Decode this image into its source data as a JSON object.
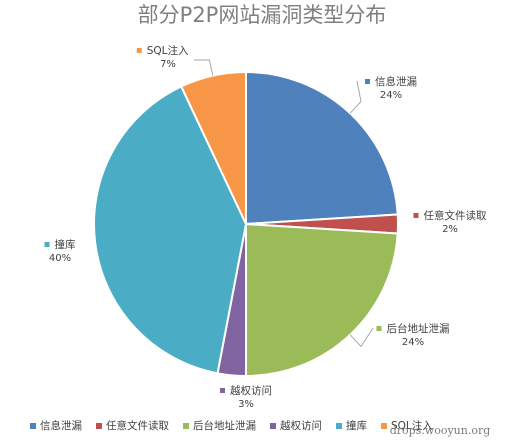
{
  "chart_data": {
    "type": "pie",
    "title": "部分P2P网站漏洞类型分布",
    "labels": [
      "信息泄漏",
      "任意文件读取",
      "后台地址泄漏",
      "越权访问",
      "撞库",
      "SQL注入"
    ],
    "values": [
      24,
      2,
      24,
      3,
      40,
      7
    ],
    "percent_labels": [
      "24%",
      "2%",
      "24%",
      "3%",
      "40%",
      "7%"
    ],
    "colors": [
      "#4F81BD",
      "#C0504D",
      "#9BBB59",
      "#8064A2",
      "#4BACC6",
      "#F79646"
    ],
    "legend_position": "bottom",
    "start_angle": "12 o'clock",
    "direction": "clockwise"
  },
  "watermark": "drops.wooyun.org"
}
